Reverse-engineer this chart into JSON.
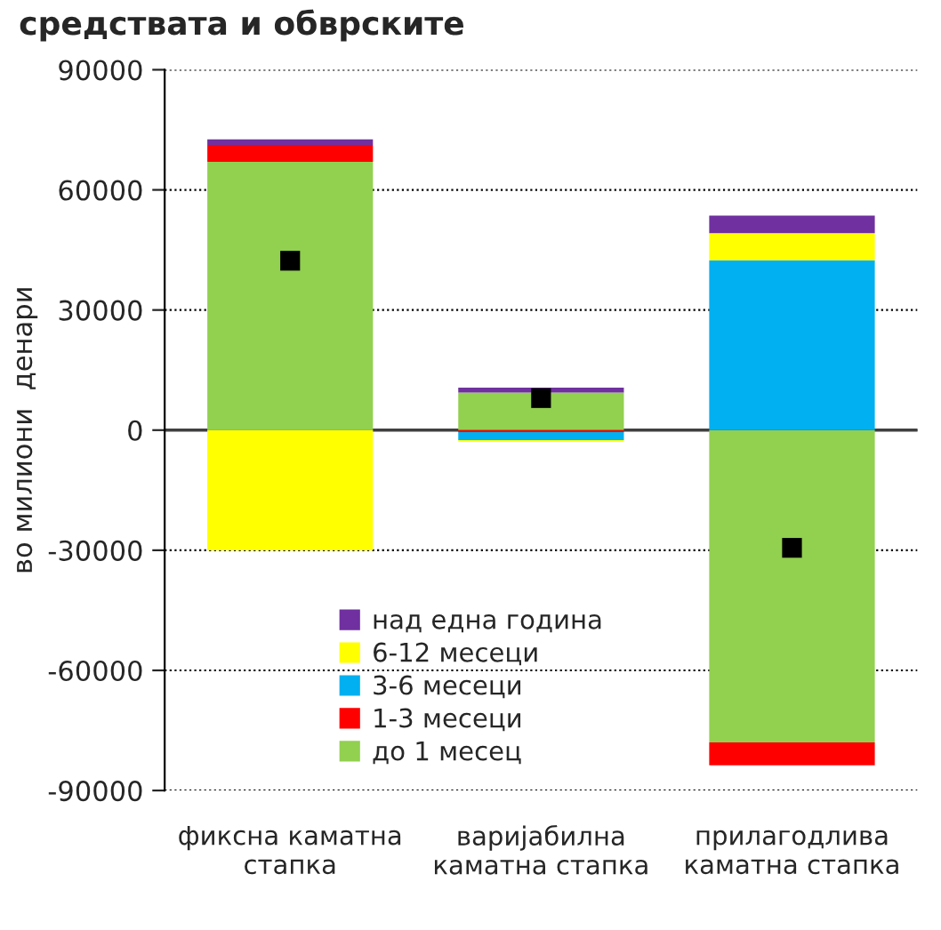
{
  "chart_data": {
    "type": "bar",
    "title": "средствата и обврските",
    "ylabel": "во милиони  денари",
    "categories": [
      "фиксна каматна\nстапка",
      "варијабилна\nкаматна стапка",
      "прилагодлива\nкаматна стапка"
    ],
    "stacked": true,
    "series": [
      {
        "name": "до 1 месец",
        "color": "#92d050",
        "values": [
          67000,
          9400,
          -78000
        ]
      },
      {
        "name": "1-3 месеци",
        "color": "#ff0000",
        "values": [
          4200,
          -500,
          -5700
        ]
      },
      {
        "name": "3-6 месеци",
        "color": "#00b0f0",
        "values": [
          0,
          -2000,
          42400
        ]
      },
      {
        "name": "6-12 месеци",
        "color": "#ffff00",
        "values": [
          -30000,
          -400,
          6800
        ]
      },
      {
        "name": "над една година",
        "color": "#7030a0",
        "values": [
          1400,
          1200,
          4400
        ]
      },
      {
        "type": "scatter",
        "marker": "square",
        "color": "#000000",
        "values": [
          42300,
          8000,
          -29400
        ]
      }
    ],
    "ylim": [
      -90000,
      90000
    ],
    "yticks": [
      -90000,
      -60000,
      -30000,
      0,
      30000,
      60000,
      90000
    ],
    "grid": "y",
    "legend": "bottom left"
  }
}
